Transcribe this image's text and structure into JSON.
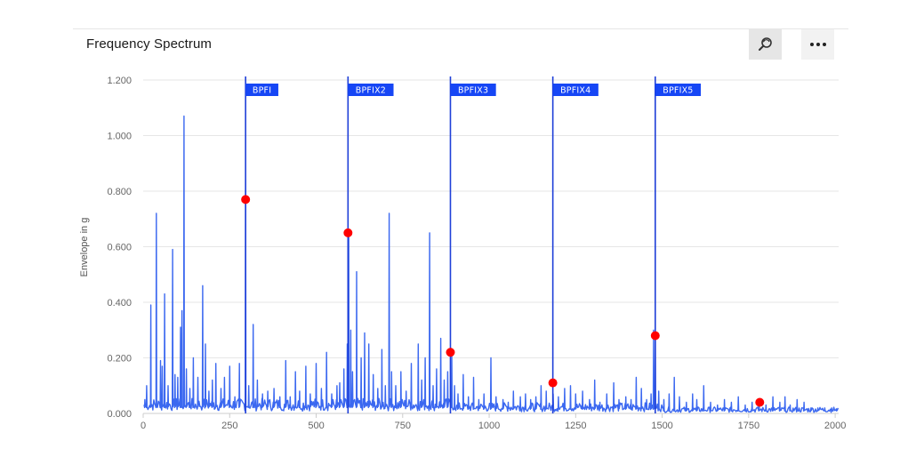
{
  "header": {
    "title": "Frequency Spectrum",
    "reset_zoom_icon": "reset-zoom-icon",
    "menu_icon": "more-horizontal-icon"
  },
  "colors": {
    "series": "#3b68f0",
    "marker_line": "#1f3fd8",
    "marker_flag": "#1646f5",
    "point": "#ff0000",
    "grid": "#e6e6e6"
  },
  "chart_data": {
    "type": "line",
    "title": "Frequency Spectrum",
    "xlabel": "",
    "ylabel": "Envelope in g",
    "xlim": [
      0,
      2010
    ],
    "ylim": [
      0,
      1.2
    ],
    "x_ticks": [
      0,
      250,
      500,
      750,
      1000,
      1250,
      1500,
      1750,
      2000
    ],
    "y_ticks": [
      0.0,
      0.2,
      0.4,
      0.6,
      0.8,
      1.0,
      1.2
    ],
    "y_tick_labels": [
      "0.000",
      "0.200",
      "0.400",
      "0.600",
      "0.800",
      "1.000",
      "1.200"
    ],
    "grid": true,
    "legend": "none",
    "peaks": [
      [
        5,
        0.05
      ],
      [
        10,
        0.1
      ],
      [
        22,
        0.39
      ],
      [
        38,
        0.72
      ],
      [
        50,
        0.19
      ],
      [
        55,
        0.17
      ],
      [
        62,
        0.43
      ],
      [
        72,
        0.1
      ],
      [
        85,
        0.59
      ],
      [
        92,
        0.14
      ],
      [
        100,
        0.13
      ],
      [
        108,
        0.31
      ],
      [
        112,
        0.37
      ],
      [
        118,
        1.07
      ],
      [
        125,
        0.16
      ],
      [
        135,
        0.09
      ],
      [
        145,
        0.2
      ],
      [
        158,
        0.13
      ],
      [
        172,
        0.46
      ],
      [
        180,
        0.25
      ],
      [
        190,
        0.08
      ],
      [
        200,
        0.12
      ],
      [
        210,
        0.18
      ],
      [
        225,
        0.09
      ],
      [
        235,
        0.13
      ],
      [
        250,
        0.17
      ],
      [
        265,
        0.06
      ],
      [
        278,
        0.18
      ],
      [
        296,
        0.84
      ],
      [
        305,
        0.1
      ],
      [
        318,
        0.32
      ],
      [
        330,
        0.12
      ],
      [
        345,
        0.07
      ],
      [
        360,
        0.08
      ],
      [
        378,
        0.09
      ],
      [
        395,
        0.06
      ],
      [
        412,
        0.19
      ],
      [
        425,
        0.06
      ],
      [
        440,
        0.15
      ],
      [
        452,
        0.08
      ],
      [
        470,
        0.17
      ],
      [
        483,
        0.07
      ],
      [
        500,
        0.18
      ],
      [
        515,
        0.09
      ],
      [
        530,
        0.22
      ],
      [
        545,
        0.07
      ],
      [
        560,
        0.1
      ],
      [
        568,
        0.11
      ],
      [
        580,
        0.16
      ],
      [
        590,
        0.25
      ],
      [
        594,
        0.66
      ],
      [
        600,
        0.3
      ],
      [
        605,
        0.15
      ],
      [
        617,
        0.51
      ],
      [
        630,
        0.2
      ],
      [
        640,
        0.29
      ],
      [
        652,
        0.25
      ],
      [
        665,
        0.14
      ],
      [
        678,
        0.09
      ],
      [
        690,
        0.23
      ],
      [
        700,
        0.1
      ],
      [
        711,
        0.72
      ],
      [
        718,
        0.15
      ],
      [
        730,
        0.1
      ],
      [
        745,
        0.15
      ],
      [
        760,
        0.08
      ],
      [
        775,
        0.18
      ],
      [
        795,
        0.25
      ],
      [
        805,
        0.12
      ],
      [
        815,
        0.2
      ],
      [
        828,
        0.65
      ],
      [
        838,
        0.1
      ],
      [
        848,
        0.16
      ],
      [
        860,
        0.27
      ],
      [
        870,
        0.12
      ],
      [
        880,
        0.15
      ],
      [
        892,
        0.21
      ],
      [
        900,
        0.1
      ],
      [
        910,
        0.07
      ],
      [
        925,
        0.14
      ],
      [
        940,
        0.06
      ],
      [
        955,
        0.13
      ],
      [
        970,
        0.05
      ],
      [
        985,
        0.07
      ],
      [
        1005,
        0.2
      ],
      [
        1020,
        0.06
      ],
      [
        1040,
        0.05
      ],
      [
        1055,
        0.04
      ],
      [
        1070,
        0.08
      ],
      [
        1090,
        0.06
      ],
      [
        1105,
        0.07
      ],
      [
        1120,
        0.05
      ],
      [
        1135,
        0.06
      ],
      [
        1150,
        0.1
      ],
      [
        1165,
        0.08
      ],
      [
        1185,
        0.07
      ],
      [
        1200,
        0.06
      ],
      [
        1218,
        0.09
      ],
      [
        1235,
        0.1
      ],
      [
        1250,
        0.07
      ],
      [
        1270,
        0.08
      ],
      [
        1290,
        0.05
      ],
      [
        1305,
        0.12
      ],
      [
        1320,
        0.04
      ],
      [
        1340,
        0.07
      ],
      [
        1360,
        0.11
      ],
      [
        1375,
        0.05
      ],
      [
        1395,
        0.06
      ],
      [
        1410,
        0.05
      ],
      [
        1425,
        0.13
      ],
      [
        1440,
        0.09
      ],
      [
        1455,
        0.05
      ],
      [
        1468,
        0.07
      ],
      [
        1475,
        0.3
      ],
      [
        1480,
        0.31
      ],
      [
        1490,
        0.08
      ],
      [
        1505,
        0.05
      ],
      [
        1520,
        0.07
      ],
      [
        1535,
        0.13
      ],
      [
        1550,
        0.06
      ],
      [
        1570,
        0.04
      ],
      [
        1588,
        0.07
      ],
      [
        1600,
        0.05
      ],
      [
        1620,
        0.1
      ],
      [
        1640,
        0.04
      ],
      [
        1660,
        0.03
      ],
      [
        1680,
        0.05
      ],
      [
        1700,
        0.04
      ],
      [
        1720,
        0.06
      ],
      [
        1740,
        0.03
      ],
      [
        1760,
        0.04
      ],
      [
        1780,
        0.05
      ],
      [
        1800,
        0.03
      ],
      [
        1820,
        0.06
      ],
      [
        1840,
        0.04
      ],
      [
        1855,
        0.06
      ],
      [
        1870,
        0.03
      ],
      [
        1890,
        0.05
      ],
      [
        1910,
        0.04
      ],
      [
        1930,
        0.02
      ],
      [
        1950,
        0.02
      ],
      [
        1970,
        0.02
      ],
      [
        1990,
        0.02
      ],
      [
        2005,
        0.015
      ]
    ],
    "markers": [
      {
        "label": "BPFI",
        "x": 296
      },
      {
        "label": "BPFIX2",
        "x": 592
      },
      {
        "label": "BPFIX3",
        "x": 888
      },
      {
        "label": "BPFIX4",
        "x": 1184
      },
      {
        "label": "BPFIX5",
        "x": 1480
      }
    ],
    "points": [
      {
        "x": 296,
        "y": 0.77
      },
      {
        "x": 592,
        "y": 0.65
      },
      {
        "x": 888,
        "y": 0.22
      },
      {
        "x": 1184,
        "y": 0.11
      },
      {
        "x": 1480,
        "y": 0.28
      },
      {
        "x": 1782,
        "y": 0.04
      }
    ]
  }
}
